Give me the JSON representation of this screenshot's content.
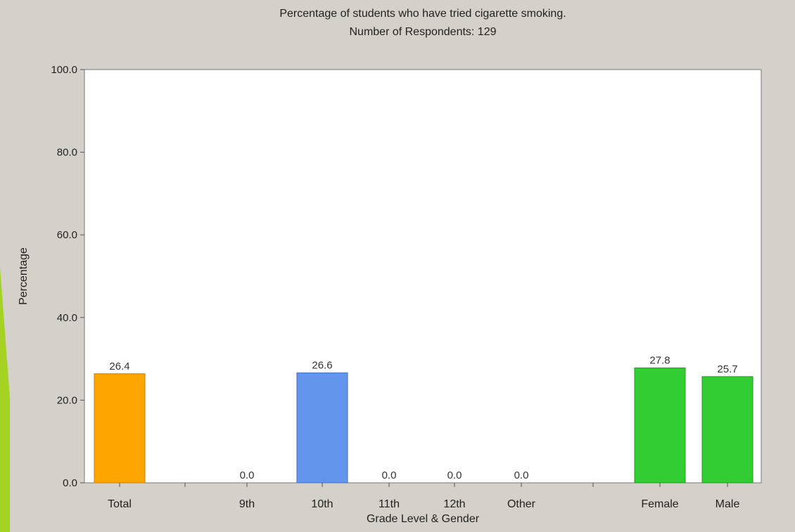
{
  "chart_data": {
    "type": "bar",
    "title": "Percentage of students who have tried cigarette smoking.",
    "subtitle": "Number of Respondents: 129",
    "xlabel": "Grade Level & Gender",
    "ylabel": "Percentage",
    "ylim": [
      0,
      100
    ],
    "yticks": [
      "0.0",
      "20.0",
      "40.0",
      "60.0",
      "80.0",
      "100.0"
    ],
    "grid": false,
    "legend": "none",
    "categories": [
      "Total",
      "9th",
      "10th",
      "11th",
      "12th",
      "Other",
      "Female",
      "Male"
    ],
    "values": [
      26.4,
      0.0,
      26.6,
      0.0,
      0.0,
      0.0,
      27.8,
      25.7
    ],
    "value_labels": [
      "26.4",
      "0.0",
      "26.6",
      "0.0",
      "0.0",
      "0.0",
      "27.8",
      "25.7"
    ],
    "groups": [
      {
        "categories": [
          "Total"
        ],
        "color": "#ffa500"
      },
      {
        "categories": [
          "9th",
          "10th",
          "11th",
          "12th",
          "Other"
        ],
        "color": "#6495ed"
      },
      {
        "categories": [
          "Female",
          "Male"
        ],
        "color": "#32cd32"
      }
    ]
  },
  "colors": {
    "background": "#d5d0c9",
    "plot_area": "#ffffff",
    "total": "#ffa500",
    "grade": "#6495ed",
    "gender": "#32cd32",
    "bar_edge_total": "#c77f00",
    "bar_edge_grade": "#3f6fc0",
    "bar_edge_gender": "#1f9a1f",
    "decoration": "#a4d324"
  }
}
